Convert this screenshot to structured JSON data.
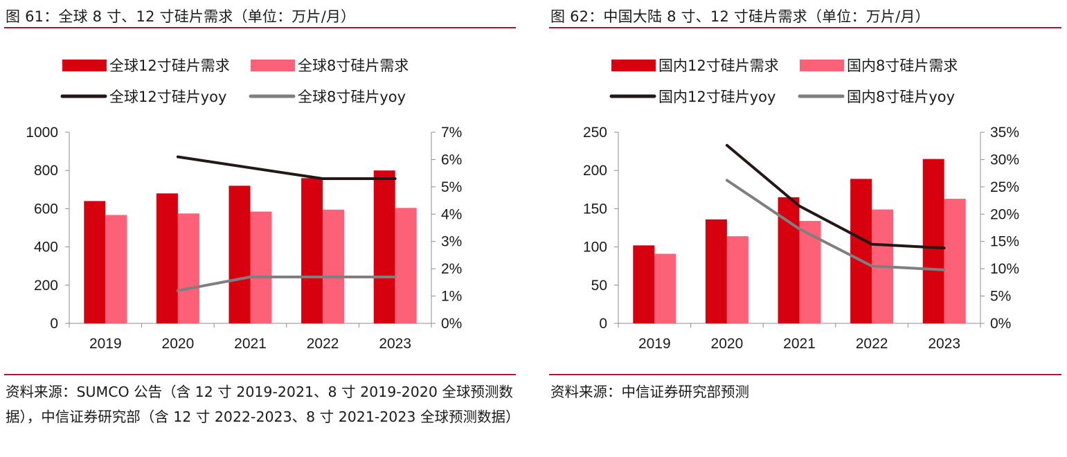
{
  "colors": {
    "bar12": "#d7000f",
    "bar8": "#fc6178",
    "line12": "#231815",
    "line8": "#7f7f7f",
    "rule": "#a6192e"
  },
  "left": {
    "title": "图 61：全球 8 寸、12 寸硅片需求（单位：万片/月）",
    "source": "资料来源：SUMCO 公告（含 12 寸 2019-2021、8 寸 2019-2020 全球预测数据），中信证券研究部（含 12 寸 2022-2023、8 寸 2021-2023 全球预测数据）",
    "chart_data": {
      "type": "bar",
      "categories": [
        "2019",
        "2020",
        "2021",
        "2022",
        "2023"
      ],
      "series": [
        {
          "name": "全球12寸硅片需求",
          "kind": "bar",
          "axis": "left",
          "values": [
            640,
            680,
            720,
            760,
            800
          ]
        },
        {
          "name": "全球8寸硅片需求",
          "kind": "bar",
          "axis": "left",
          "values": [
            567,
            575,
            585,
            595,
            604
          ]
        },
        {
          "name": "全球12寸硅片yoy",
          "kind": "line",
          "axis": "right",
          "values": [
            null,
            6.1,
            5.7,
            5.3,
            5.3
          ]
        },
        {
          "name": "全球8寸硅片yoy",
          "kind": "line",
          "axis": "right",
          "values": [
            null,
            1.2,
            1.7,
            1.7,
            1.7
          ]
        }
      ],
      "ylim": [
        0,
        1000
      ],
      "yticks": [
        "0",
        "200",
        "400",
        "600",
        "800",
        "1000"
      ],
      "y2lim": [
        0,
        7
      ],
      "y2ticks": [
        "0%",
        "1%",
        "2%",
        "3%",
        "4%",
        "5%",
        "6%",
        "7%"
      ],
      "legend": "top"
    }
  },
  "right": {
    "title": "图 62：中国大陆 8 寸、12 寸硅片需求（单位：万片/月）",
    "source": "资料来源：中信证券研究部预测",
    "chart_data": {
      "type": "bar",
      "categories": [
        "2019",
        "2020",
        "2021",
        "2022",
        "2023"
      ],
      "series": [
        {
          "name": "国内12寸硅片需求",
          "kind": "bar",
          "axis": "left",
          "values": [
            102,
            136,
            165,
            189,
            215
          ]
        },
        {
          "name": "国内8寸硅片需求",
          "kind": "bar",
          "axis": "left",
          "values": [
            91,
            114,
            134,
            149,
            163
          ]
        },
        {
          "name": "国内12寸硅片yoy",
          "kind": "line",
          "axis": "right",
          "values": [
            null,
            32.6,
            21.5,
            14.5,
            13.8
          ]
        },
        {
          "name": "国内8寸硅片yoy",
          "kind": "line",
          "axis": "right",
          "values": [
            null,
            26.2,
            17.3,
            10.5,
            9.8
          ]
        }
      ],
      "ylim": [
        0,
        250
      ],
      "yticks": [
        "0",
        "50",
        "100",
        "150",
        "200",
        "250"
      ],
      "y2lim": [
        0,
        35
      ],
      "y2ticks": [
        "0%",
        "5%",
        "10%",
        "15%",
        "20%",
        "25%",
        "30%",
        "35%"
      ],
      "legend": "top"
    }
  }
}
